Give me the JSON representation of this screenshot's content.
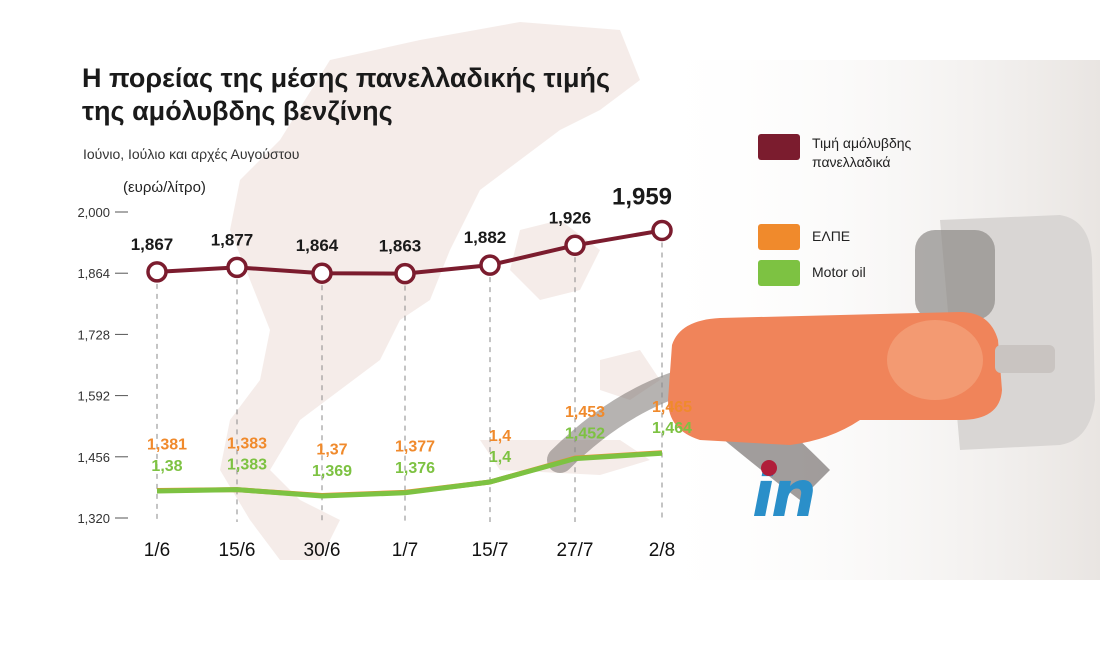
{
  "title_line1": "Η πορείας της μέσης πανελλαδικής τιμής",
  "title_line2": "της αμόλυβδης βενζίνης",
  "subtitle": "Ιούνιο, Ιούλιο και αρχές Αυγούστου",
  "logo": "in",
  "colors": {
    "average": "#7b1c2e",
    "elpe": "#f08a2c",
    "motor_oil": "#7dc242"
  },
  "chart_data": {
    "type": "line",
    "ylabel": "(ευρώ/λίτρο)",
    "ylim": [
      1.32,
      2.0
    ],
    "yticks": [
      2.0,
      1.864,
      1.728,
      1.592,
      1.456,
      1.32
    ],
    "ytick_labels": [
      "2,000",
      "1,864",
      "1,728",
      "1,592",
      "1,456",
      "1,320"
    ],
    "categories": [
      "1/6",
      "15/6",
      "30/6",
      "1/7",
      "15/7",
      "27/7",
      "2/8"
    ],
    "grid": false,
    "legend_position": "right",
    "series": [
      {
        "name": "Τιμή αμόλυβδης πανελλαδικά",
        "values": [
          1.867,
          1.877,
          1.864,
          1.863,
          1.882,
          1.926,
          1.959
        ],
        "labels": [
          "1,867",
          "1,877",
          "1,864",
          "1,863",
          "1,882",
          "1,926",
          "1,959"
        ]
      },
      {
        "name": "ΕΛΠΕ",
        "values": [
          1.381,
          1.383,
          1.37,
          1.377,
          1.4,
          1.453,
          1.465
        ],
        "labels": [
          "1,381",
          "1,383",
          "1,37",
          "1,377",
          "1,4",
          "1,453",
          "1,465"
        ]
      },
      {
        "name": "Motor oil",
        "values": [
          1.38,
          1.383,
          1.369,
          1.376,
          1.4,
          1.452,
          1.464
        ],
        "labels": [
          "1,38",
          "1,383",
          "1,369",
          "1,376",
          "1,4",
          "1,452",
          "1,464"
        ]
      }
    ]
  }
}
